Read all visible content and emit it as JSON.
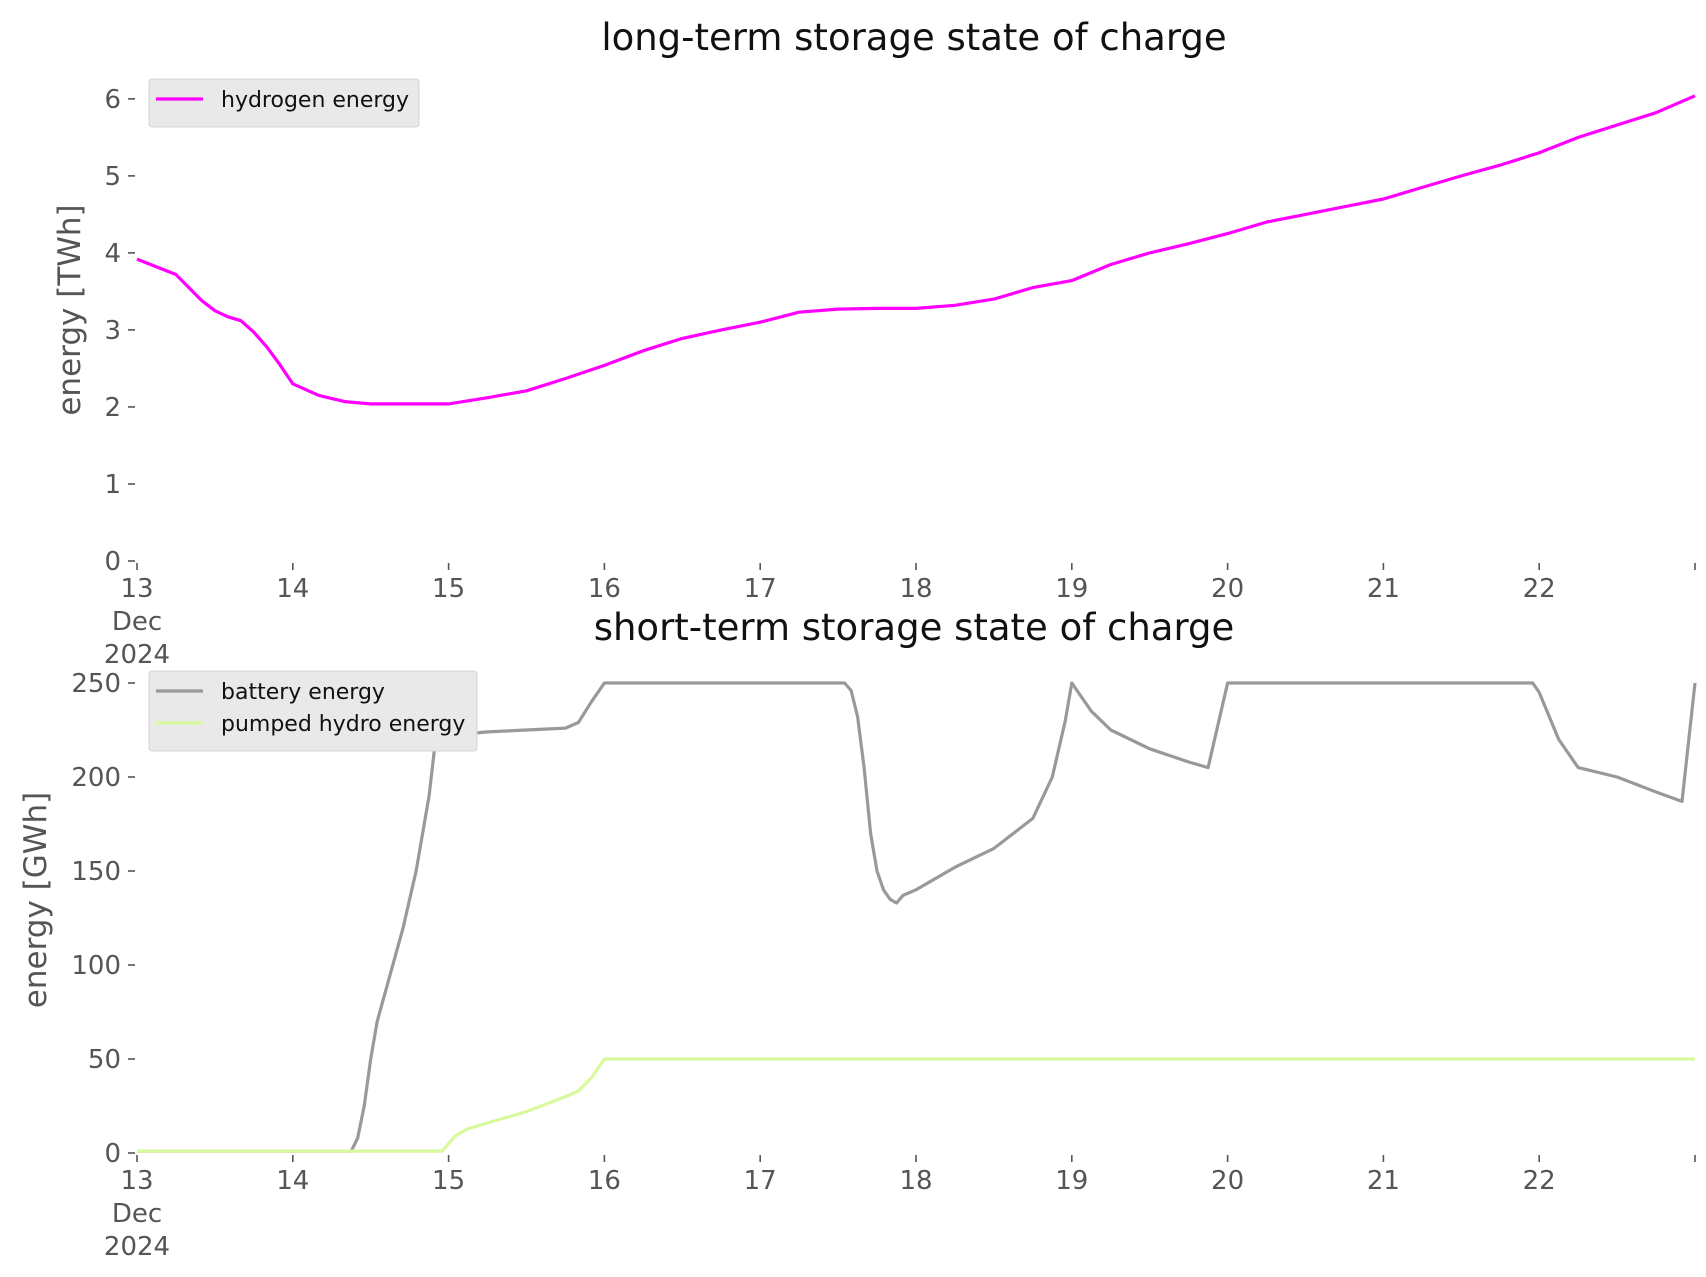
{
  "chart_data": [
    {
      "type": "line",
      "title": "long-term storage state of charge",
      "xlabel": "",
      "ylabel": "energy [TWh]",
      "x_ticks": [
        "13",
        "14",
        "15",
        "16",
        "17",
        "18",
        "19",
        "20",
        "21",
        "22"
      ],
      "x_sublabels": [
        "Dec",
        "2024"
      ],
      "xlim": [
        "2024-12-13",
        "2024-12-23"
      ],
      "ylim": [
        0,
        6.05
      ],
      "y_ticks": [
        "0",
        "1",
        "2",
        "3",
        "4",
        "5",
        "6"
      ],
      "grid": false,
      "legend_position": "top-left",
      "series": [
        {
          "name": "hydrogen energy",
          "color": "#ff00ff",
          "points": [
            [
              "2024-12-13 00:00",
              3.92
            ],
            [
              "2024-12-13 06:00",
              3.72
            ],
            [
              "2024-12-13 08:00",
              3.55
            ],
            [
              "2024-12-13 10:00",
              3.38
            ],
            [
              "2024-12-13 12:00",
              3.25
            ],
            [
              "2024-12-13 14:00",
              3.17
            ],
            [
              "2024-12-13 16:00",
              3.12
            ],
            [
              "2024-12-13 18:00",
              2.97
            ],
            [
              "2024-12-13 20:00",
              2.78
            ],
            [
              "2024-12-13 22:00",
              2.55
            ],
            [
              "2024-12-14 00:00",
              2.3
            ],
            [
              "2024-12-14 04:00",
              2.15
            ],
            [
              "2024-12-14 08:00",
              2.07
            ],
            [
              "2024-12-14 12:00",
              2.04
            ],
            [
              "2024-12-14 18:00",
              2.04
            ],
            [
              "2024-12-15 00:00",
              2.04
            ],
            [
              "2024-12-15 06:00",
              2.12
            ],
            [
              "2024-12-15 12:00",
              2.21
            ],
            [
              "2024-12-15 18:00",
              2.37
            ],
            [
              "2024-12-16 00:00",
              2.54
            ],
            [
              "2024-12-16 06:00",
              2.73
            ],
            [
              "2024-12-16 12:00",
              2.89
            ],
            [
              "2024-12-16 18:00",
              3.0
            ],
            [
              "2024-12-17 00:00",
              3.1
            ],
            [
              "2024-12-17 06:00",
              3.23
            ],
            [
              "2024-12-17 12:00",
              3.27
            ],
            [
              "2024-12-17 18:00",
              3.28
            ],
            [
              "2024-12-18 00:00",
              3.28
            ],
            [
              "2024-12-18 06:00",
              3.32
            ],
            [
              "2024-12-18 12:00",
              3.4
            ],
            [
              "2024-12-18 18:00",
              3.55
            ],
            [
              "2024-12-19 00:00",
              3.64
            ],
            [
              "2024-12-19 06:00",
              3.85
            ],
            [
              "2024-12-19 12:00",
              4.0
            ],
            [
              "2024-12-19 18:00",
              4.12
            ],
            [
              "2024-12-20 00:00",
              4.25
            ],
            [
              "2024-12-20 06:00",
              4.4
            ],
            [
              "2024-12-20 12:00",
              4.5
            ],
            [
              "2024-12-20 18:00",
              4.6
            ],
            [
              "2024-12-21 00:00",
              4.7
            ],
            [
              "2024-12-21 06:00",
              4.85
            ],
            [
              "2024-12-21 12:00",
              5.0
            ],
            [
              "2024-12-21 18:00",
              5.14
            ],
            [
              "2024-12-22 00:00",
              5.3
            ],
            [
              "2024-12-22 06:00",
              5.5
            ],
            [
              "2024-12-22 12:00",
              5.66
            ],
            [
              "2024-12-22 18:00",
              5.82
            ],
            [
              "2024-12-23 00:00",
              6.04
            ]
          ]
        }
      ]
    },
    {
      "type": "line",
      "title": "short-term storage state of charge",
      "xlabel": "",
      "ylabel": "energy [GWh]",
      "x_ticks": [
        "13",
        "14",
        "15",
        "16",
        "17",
        "18",
        "19",
        "20",
        "21",
        "22"
      ],
      "x_sublabels": [
        "Dec",
        "2024"
      ],
      "xlim": [
        "2024-12-13",
        "2024-12-23"
      ],
      "ylim": [
        0,
        250
      ],
      "y_ticks": [
        "0",
        "50",
        "100",
        "150",
        "200",
        "250"
      ],
      "grid": false,
      "legend_position": "top-left",
      "series": [
        {
          "name": "battery energy",
          "color": "#999999",
          "points": [
            [
              "2024-12-13 00:00",
              1
            ],
            [
              "2024-12-14 09:00",
              1
            ],
            [
              "2024-12-14 10:00",
              8
            ],
            [
              "2024-12-14 11:00",
              25
            ],
            [
              "2024-12-14 12:00",
              50
            ],
            [
              "2024-12-14 13:00",
              70
            ],
            [
              "2024-12-14 15:00",
              95
            ],
            [
              "2024-12-14 17:00",
              120
            ],
            [
              "2024-12-14 19:00",
              150
            ],
            [
              "2024-12-14 21:00",
              190
            ],
            [
              "2024-12-14 22:00",
              220
            ],
            [
              "2024-12-15 00:00",
              222
            ],
            [
              "2024-12-15 06:00",
              224
            ],
            [
              "2024-12-15 12:00",
              225
            ],
            [
              "2024-12-15 18:00",
              226
            ],
            [
              "2024-12-15 20:00",
              229
            ],
            [
              "2024-12-15 22:00",
              240
            ],
            [
              "2024-12-16 00:00",
              250
            ],
            [
              "2024-12-17 13:00",
              250
            ],
            [
              "2024-12-17 14:00",
              246
            ],
            [
              "2024-12-17 15:00",
              232
            ],
            [
              "2024-12-17 16:00",
              205
            ],
            [
              "2024-12-17 17:00",
              170
            ],
            [
              "2024-12-17 18:00",
              150
            ],
            [
              "2024-12-17 19:00",
              140
            ],
            [
              "2024-12-17 20:00",
              135
            ],
            [
              "2024-12-17 21:00",
              133
            ],
            [
              "2024-12-17 22:00",
              137
            ],
            [
              "2024-12-18 00:00",
              140
            ],
            [
              "2024-12-18 06:00",
              152
            ],
            [
              "2024-12-18 12:00",
              162
            ],
            [
              "2024-12-18 18:00",
              178
            ],
            [
              "2024-12-18 21:00",
              200
            ],
            [
              "2024-12-18 23:00",
              230
            ],
            [
              "2024-12-19 00:00",
              250
            ],
            [
              "2024-12-19 03:00",
              235
            ],
            [
              "2024-12-19 06:00",
              225
            ],
            [
              "2024-12-19 12:00",
              215
            ],
            [
              "2024-12-19 18:00",
              208
            ],
            [
              "2024-12-19 21:00",
              205
            ],
            [
              "2024-12-20 00:00",
              250
            ],
            [
              "2024-12-21 23:00",
              250
            ],
            [
              "2024-12-22 00:00",
              245
            ],
            [
              "2024-12-22 03:00",
              220
            ],
            [
              "2024-12-22 06:00",
              205
            ],
            [
              "2024-12-22 12:00",
              200
            ],
            [
              "2024-12-22 18:00",
              192
            ],
            [
              "2024-12-22 22:00",
              187
            ],
            [
              "2024-12-23 00:00",
              250
            ]
          ]
        },
        {
          "name": "pumped hydro energy",
          "color": "#d9f99d",
          "points": [
            [
              "2024-12-13 00:00",
              1
            ],
            [
              "2024-12-14 23:00",
              1
            ],
            [
              "2024-12-15 01:00",
              9
            ],
            [
              "2024-12-15 03:00",
              13
            ],
            [
              "2024-12-15 06:00",
              16
            ],
            [
              "2024-12-15 12:00",
              22
            ],
            [
              "2024-12-15 18:00",
              30
            ],
            [
              "2024-12-15 20:00",
              33
            ],
            [
              "2024-12-15 22:00",
              40
            ],
            [
              "2024-12-16 00:00",
              50
            ],
            [
              "2024-12-23 00:00",
              50
            ]
          ]
        }
      ]
    }
  ]
}
